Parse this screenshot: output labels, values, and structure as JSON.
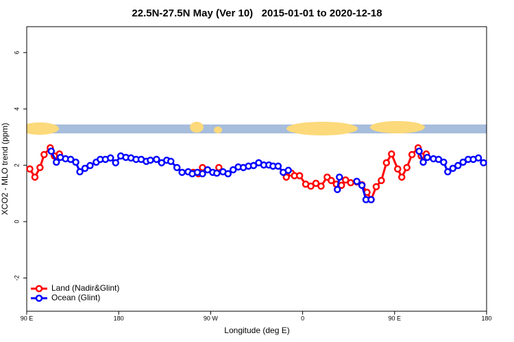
{
  "chart_data": {
    "type": "line",
    "title": "22.5N-27.5N May (Ver 10)   2015-01-01 to 2020-12-18",
    "x_label": "Longitude (deg E)",
    "y_label": "XCO2 - MLO trend (ppm)",
    "xlim": [
      90,
      540
    ],
    "xticks": [
      {
        "value": 90,
        "label": "90 E"
      },
      180,
      {
        "value": 270,
        "label": "90 W"
      },
      {
        "value": 360,
        "label": "0"
      },
      {
        "value": 450,
        "label": "90 E"
      },
      {
        "value": 540,
        "label": "180"
      }
    ],
    "ylim": [
      -3.18,
      6.92
    ],
    "yticks": [
      -2,
      0,
      2,
      4,
      6
    ],
    "legend": "bottom-left",
    "series": [
      {
        "name": "Land (Nadir&Glint)",
        "color": "#ff0000",
        "x": [
          93,
          98,
          103,
          107,
          113,
          117,
          122,
          187,
          253,
          258,
          262,
          270,
          278,
          311,
          344,
          349,
          352,
          357,
          363,
          368,
          373,
          378,
          384,
          388,
          393,
          398,
          402,
          407,
          413,
          418,
          423,
          427,
          432,
          437,
          442,
          447,
          453,
          457,
          462,
          467,
          473,
          476,
          481
        ],
        "values": [
          1.87,
          1.58,
          1.92,
          2.38,
          2.62,
          2.33,
          2.4,
          null,
          1.75,
          1.7,
          1.92,
          null,
          1.92,
          null,
          1.58,
          1.72,
          1.63,
          1.63,
          1.33,
          1.26,
          1.36,
          1.26,
          1.58,
          1.46,
          1.33,
          1.29,
          1.48,
          1.38,
          1.41,
          1.31,
          1.04,
          0.78,
          1.24,
          1.46,
          2.09,
          2.4,
          1.87,
          1.58,
          1.92,
          2.38,
          2.62,
          2.33,
          2.4
        ]
      },
      {
        "name": "Ocean (Glint)",
        "color": "#0000ff",
        "x": [
          114,
          119,
          123,
          128,
          133,
          138,
          142,
          147,
          152,
          158,
          162,
          167,
          172,
          177,
          182,
          187,
          192,
          197,
          202,
          207,
          211,
          217,
          222,
          227,
          231,
          237,
          242,
          248,
          252,
          257,
          262,
          267,
          272,
          276,
          282,
          287,
          292,
          297,
          302,
          307,
          312,
          317,
          322,
          327,
          331,
          336,
          341,
          346,
          380,
          394,
          396,
          410,
          413,
          418,
          422,
          427,
          450,
          474,
          478,
          482,
          488,
          493,
          498,
          502,
          507,
          512,
          517,
          522,
          527,
          532,
          537
        ],
        "values": [
          2.5,
          2.11,
          2.28,
          2.23,
          2.21,
          2.11,
          1.77,
          1.89,
          1.99,
          2.11,
          2.21,
          2.21,
          2.26,
          2.09,
          2.33,
          2.28,
          2.26,
          2.21,
          2.21,
          2.14,
          2.18,
          2.21,
          2.09,
          2.18,
          2.14,
          1.92,
          1.75,
          1.77,
          1.7,
          1.75,
          1.7,
          1.84,
          1.75,
          1.72,
          1.77,
          1.7,
          1.84,
          1.94,
          1.92,
          1.97,
          1.99,
          2.09,
          2.01,
          2.01,
          1.97,
          1.97,
          1.75,
          1.82,
          null,
          1.14,
          1.58,
          null,
          1.43,
          1.29,
          0.78,
          0.78,
          null,
          2.5,
          2.11,
          2.28,
          2.23,
          2.21,
          2.11,
          1.77,
          1.89,
          1.99,
          2.11,
          2.21,
          2.21,
          2.26,
          2.09
        ]
      }
    ]
  }
}
